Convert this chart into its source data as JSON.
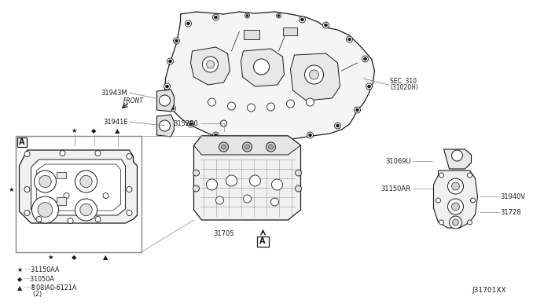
{
  "bg_color": "#ffffff",
  "line_color": "#1a1a1a",
  "gray_color": "#888888",
  "light_gray": "#cccccc",
  "labels": {
    "sec310": "SEC. 310\n(31020H)",
    "31943M": "31943M",
    "31941E": "31941E",
    "31528D": "315280",
    "31705": "31705",
    "31069U": "31069U",
    "31150AR": "31150AR",
    "31940V": "31940V",
    "31728": "31728",
    "front": "FRONT",
    "A_label": "A",
    "leg1": "★ ···31150AA",
    "leg2": "◆ ···31050A",
    "leg3": "▲ ···®08IA0-6121A",
    "leg3b": "        (2)",
    "footer": "J31701XX"
  },
  "fs": 6.0,
  "fs_leg": 5.8,
  "fs_foot": 6.5
}
